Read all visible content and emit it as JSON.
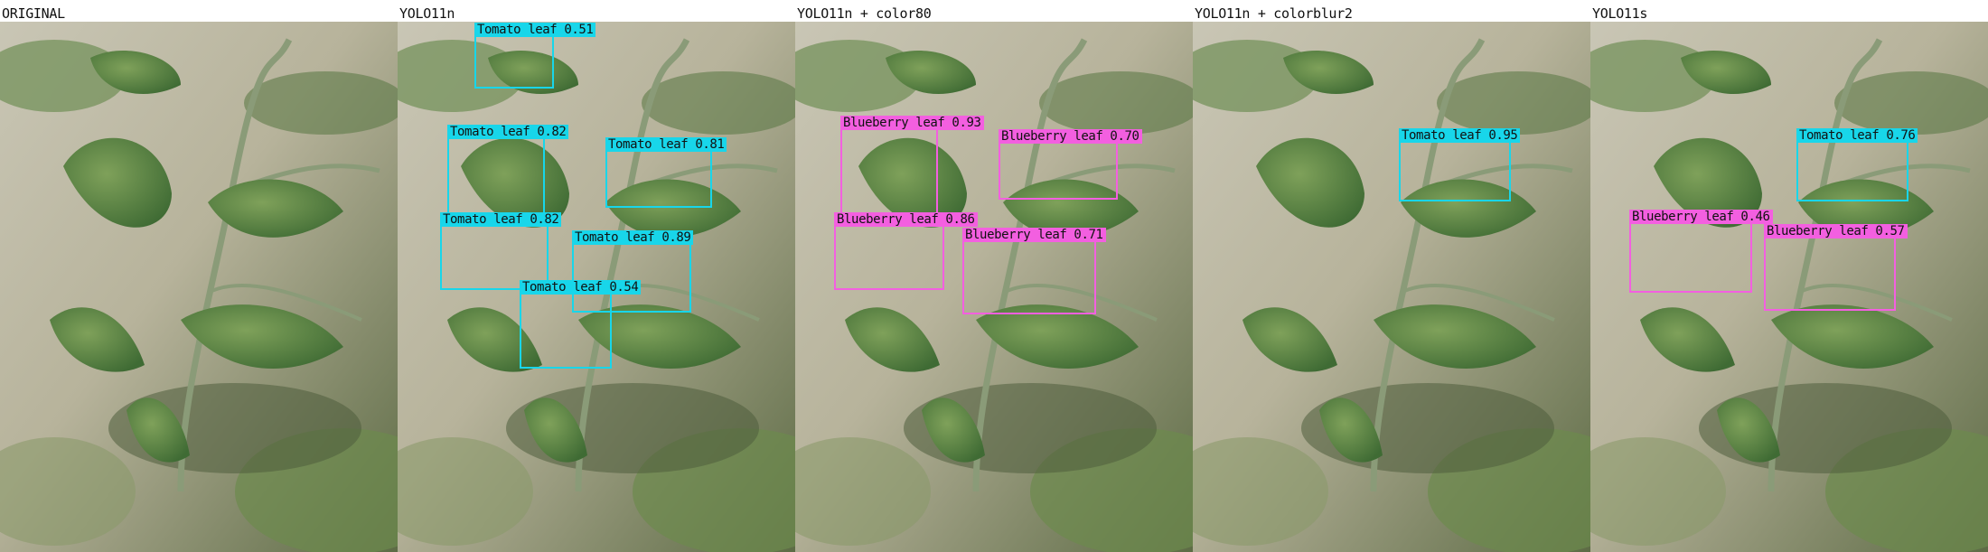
{
  "panels": [
    {
      "title": "ORIGINAL",
      "detections": []
    },
    {
      "title": "YOLO11n",
      "detections": [
        {
          "label": "Tomato leaf 0.51"
        },
        {
          "label": "Tomato leaf 0.82"
        },
        {
          "label": "Tomato leaf 0.81"
        },
        {
          "label": "Tomato leaf 0.82"
        },
        {
          "label": "Tomato leaf 0.89"
        },
        {
          "label": "Tomato leaf 0.54"
        }
      ]
    },
    {
      "title": "YOLO11n + color80",
      "detections": [
        {
          "label": "Blueberry leaf 0.93"
        },
        {
          "label": "Blueberry leaf 0.70"
        },
        {
          "label": "Blueberry leaf 0.86"
        },
        {
          "label": "Blueberry leaf 0.71"
        }
      ]
    },
    {
      "title": "YOLO11n + colorblur2",
      "detections": [
        {
          "label": "Tomato leaf 0.95"
        }
      ]
    },
    {
      "title": "YOLO11s",
      "detections": [
        {
          "label": "Tomato leaf 0.76"
        },
        {
          "label": "Blueberry leaf 0.46"
        },
        {
          "label": "Blueberry leaf 0.57"
        }
      ]
    }
  ],
  "colors": {
    "tomato_box": "#18d6ea",
    "blueberry_box": "#f35fe0",
    "background": "#ffffff"
  }
}
